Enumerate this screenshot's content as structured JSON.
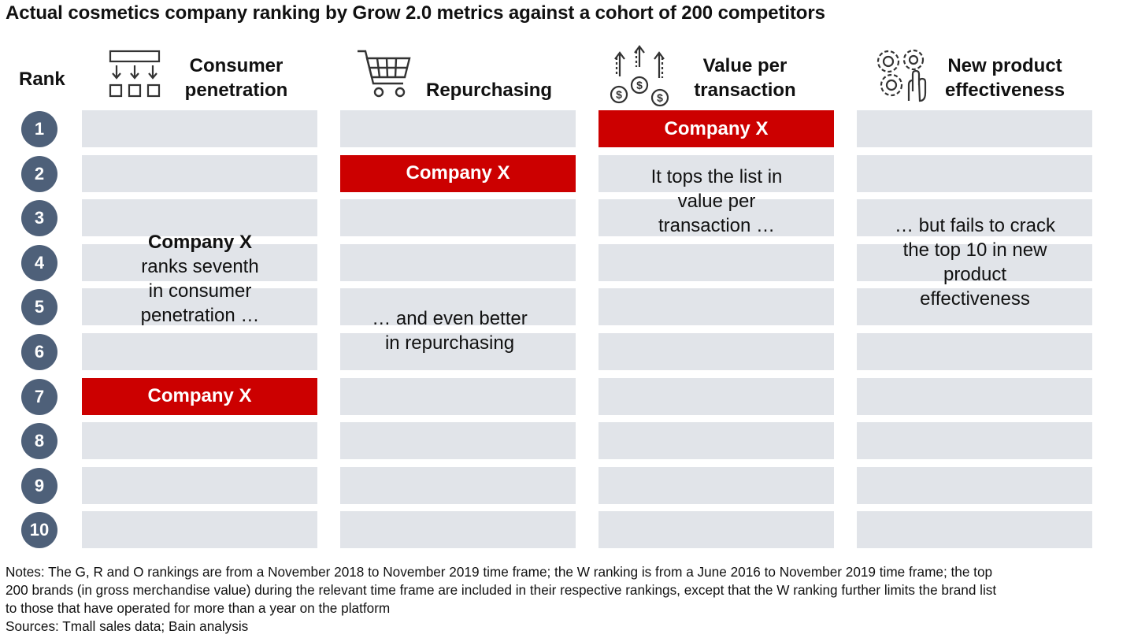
{
  "title": "Actual cosmetics company ranking by Grow 2.0 metrics against a cohort of 200 competitors",
  "rank_label": "Rank",
  "columns": [
    {
      "line1": "Consumer",
      "line2": "penetration",
      "icon": "funnel-distribution-icon"
    },
    {
      "line1": "",
      "line2": "Repurchasing",
      "icon": "shopping-cart-icon"
    },
    {
      "line1": "Value per",
      "line2": "transaction",
      "icon": "dollar-coins-arrows-icon"
    },
    {
      "line1": "New product",
      "line2": "effectiveness",
      "icon": "gears-hand-icon"
    }
  ],
  "chart_data": {
    "type": "table",
    "title": "Actual cosmetics company ranking by Grow 2.0 metrics against a cohort of 200 competitors",
    "ranks": [
      "1",
      "2",
      "3",
      "4",
      "5",
      "6",
      "7",
      "8",
      "9",
      "10"
    ],
    "metrics": [
      "Consumer penetration",
      "Repurchasing",
      "Value per transaction",
      "New product effectiveness"
    ],
    "highlight_label": "Company X",
    "company_rank": {
      "Consumer penetration": 7,
      "Repurchasing": 2,
      "Value per transaction": 1,
      "New product effectiveness": null
    },
    "highlight_color": "#cc0000",
    "cell_color": "#e1e4e9",
    "rank_circle_color": "#4e6079"
  },
  "annotations": {
    "col1": {
      "bold": "Company X",
      "line1": "ranks seventh",
      "line2": "in consumer",
      "line3": "penetration …"
    },
    "col2": {
      "line1": "… and even better",
      "line2": "in repurchasing"
    },
    "col3": {
      "line1": "It tops the list in",
      "line2": "value per",
      "line3": "transaction …"
    },
    "col4": {
      "line1": "… but fails to crack",
      "line2": "the top 10 in new",
      "line3": "product",
      "line4": "effectiveness"
    }
  },
  "notes": {
    "line1": "Notes: The G, R and O rankings are from a November 2018 to November 2019 time frame; the W ranking is from a June 2016 to November 2019 time frame; the top",
    "line2": "200 brands (in gross merchandise value) during the relevant time frame are included in their respective rankings, except that the W ranking further limits the brand list",
    "line3": "to those that have operated for more than a year on the platform",
    "sources": "Sources: Tmall sales data; Bain analysis"
  }
}
